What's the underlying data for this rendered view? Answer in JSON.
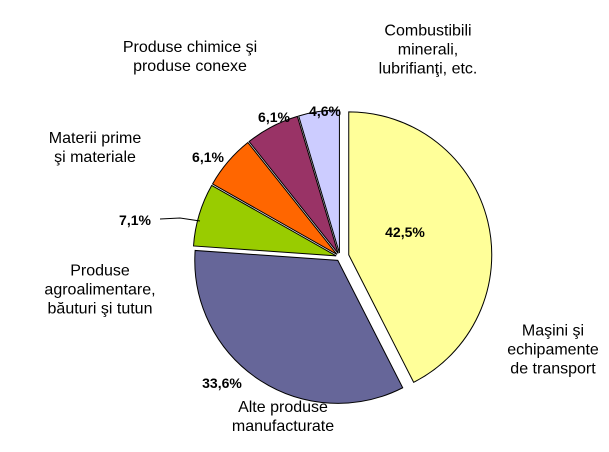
{
  "chart_data": {
    "type": "pie",
    "categories": [
      "Maşini şi\nechipamente\nde transport",
      "Alte produse\nmanufacturate",
      "Produse\nagroalimentare,\nbăuturi şi tutun",
      "Materii  prime\nşi materiale",
      "Produse chimice şi\nproduse conexe",
      "Combustibili\nminerali,\nlubrifianţi, etc."
    ],
    "values": [
      42.5,
      33.6,
      7.1,
      6.1,
      6.1,
      4.6
    ],
    "value_labels": [
      "42,5%",
      "33,6%",
      "7,1%",
      "6,1%",
      "6,1%",
      "4,6%"
    ],
    "colors": [
      "#FFFF99",
      "#666699",
      "#99CC00",
      "#FF6600",
      "#993366",
      "#CCCCFF"
    ]
  }
}
